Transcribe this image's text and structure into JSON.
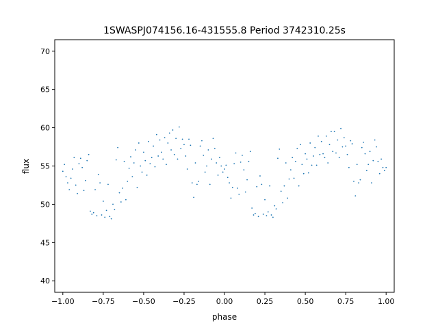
{
  "chart_data": {
    "type": "scatter",
    "title": "1SWASPJ074156.16-431555.8 Period 3742310.25s",
    "xlabel": "phase",
    "ylabel": "flux",
    "xlim": [
      -1.05,
      1.05
    ],
    "ylim": [
      38.5,
      71.5
    ],
    "xticks": [
      -1.0,
      -0.75,
      -0.5,
      -0.25,
      0.0,
      0.25,
      0.5,
      0.75,
      1.0
    ],
    "xtick_labels": [
      "−1.00",
      "−0.75",
      "−0.50",
      "−0.25",
      "0.00",
      "0.25",
      "0.50",
      "0.75",
      "1.00"
    ],
    "yticks": [
      40,
      45,
      50,
      55,
      60,
      65,
      70
    ],
    "ytick_labels": [
      "40",
      "45",
      "50",
      "55",
      "60",
      "65",
      "70"
    ],
    "grid": false,
    "legend": "none",
    "marker_color": "#1f77b4",
    "series": [
      {
        "x": [
          -1.0,
          -0.99,
          -0.98,
          -0.97,
          -0.96,
          -0.95,
          -0.94,
          -0.93,
          -0.92,
          -0.91,
          -0.9,
          -0.89,
          -0.88,
          -0.87,
          -0.86,
          -0.85,
          -0.84,
          -0.83,
          -0.82,
          -0.81,
          -0.8,
          -0.79,
          -0.78,
          -0.77,
          -0.76,
          -0.75,
          -0.74,
          -0.73,
          -0.72,
          -0.71,
          -0.7,
          -0.69,
          -0.68,
          -0.67,
          -0.66,
          -0.65,
          -0.64,
          -0.63,
          -0.62,
          -0.61,
          -0.6,
          -0.59,
          -0.58,
          -0.57,
          -0.56,
          -0.55,
          -0.54,
          -0.53,
          -0.52,
          -0.51,
          -0.5,
          -0.49,
          -0.48,
          -0.47,
          -0.46,
          -0.45,
          -0.44,
          -0.43,
          -0.42,
          -0.41,
          -0.4,
          -0.39,
          -0.38,
          -0.37,
          -0.36,
          -0.35,
          -0.34,
          -0.33,
          -0.32,
          -0.31,
          -0.3,
          -0.29,
          -0.28,
          -0.27,
          -0.26,
          -0.25,
          -0.24,
          -0.23,
          -0.22,
          -0.21,
          -0.2,
          -0.19,
          -0.18,
          -0.17,
          -0.16,
          -0.15,
          -0.14,
          -0.13,
          -0.12,
          -0.11,
          -0.1,
          -0.09,
          -0.08,
          -0.07,
          -0.06,
          -0.05,
          -0.04,
          -0.03,
          -0.02,
          -0.01,
          0.0,
          0.01,
          0.02,
          0.03,
          0.04,
          0.05,
          0.06,
          0.07,
          0.08,
          0.09,
          0.1,
          0.11,
          0.12,
          0.13,
          0.14,
          0.15,
          0.16,
          0.17,
          0.18,
          0.19,
          0.2,
          0.21,
          0.22,
          0.23,
          0.24,
          0.25,
          0.26,
          0.27,
          0.28,
          0.29,
          0.3,
          0.31,
          0.32,
          0.33,
          0.34,
          0.35,
          0.36,
          0.37,
          0.38,
          0.39,
          0.4,
          0.41,
          0.42,
          0.43,
          0.44,
          0.45,
          0.46,
          0.47,
          0.48,
          0.49,
          0.5,
          0.51,
          0.52,
          0.53,
          0.54,
          0.55,
          0.56,
          0.57,
          0.58,
          0.59,
          0.6,
          0.61,
          0.62,
          0.63,
          0.64,
          0.65,
          0.66,
          0.67,
          0.68,
          0.69,
          0.7,
          0.71,
          0.72,
          0.73,
          0.74,
          0.75,
          0.76,
          0.77,
          0.78,
          0.79,
          0.8,
          0.81,
          0.82,
          0.83,
          0.84,
          0.85,
          0.86,
          0.87,
          0.88,
          0.89,
          0.9,
          0.91,
          0.92,
          0.93,
          0.94,
          0.95,
          0.96,
          0.97,
          0.98,
          0.99,
          1.0
        ],
        "y": [
          54.3,
          55.2,
          53.6,
          52.8,
          51.9,
          53.4,
          54.6,
          56.1,
          52.5,
          51.4,
          55.3,
          56.0,
          54.8,
          51.8,
          53.1,
          55.7,
          56.5,
          49.1,
          48.7,
          48.9,
          51.9,
          48.5,
          53.9,
          52.8,
          48.6,
          50.4,
          48.3,
          49.2,
          52.6,
          48.4,
          48.1,
          50.0,
          49.3,
          55.8,
          57.4,
          51.5,
          50.3,
          52.1,
          55.6,
          50.6,
          53.0,
          54.7,
          56.2,
          53.6,
          55.4,
          57.1,
          52.2,
          58.0,
          55.0,
          54.2,
          56.8,
          55.7,
          53.8,
          58.2,
          55.3,
          56.1,
          57.6,
          54.9,
          59.1,
          56.3,
          58.4,
          56.8,
          55.9,
          58.7,
          55.2,
          58.0,
          59.3,
          57.1,
          59.7,
          56.5,
          58.6,
          55.9,
          60.1,
          57.3,
          58.5,
          57.8,
          56.3,
          54.6,
          58.5,
          57.7,
          52.8,
          50.9,
          55.4,
          52.6,
          53.0,
          57.6,
          58.3,
          56.4,
          54.2,
          55.0,
          57.1,
          52.6,
          55.9,
          58.6,
          57.3,
          55.4,
          53.8,
          56.1,
          55.0,
          54.2,
          54.6,
          55.1,
          53.5,
          52.8,
          50.8,
          52.2,
          55.3,
          56.7,
          52.1,
          51.3,
          55.5,
          56.4,
          54.5,
          51.6,
          53.2,
          55.6,
          56.9,
          49.5,
          48.6,
          48.8,
          52.3,
          48.4,
          53.7,
          52.6,
          48.7,
          50.6,
          48.5,
          49.0,
          52.4,
          48.6,
          48.3,
          49.8,
          49.4,
          56.0,
          57.2,
          51.7,
          50.2,
          52.4,
          55.4,
          50.8,
          53.3,
          54.5,
          56.1,
          53.4,
          55.6,
          57.3,
          52.4,
          57.8,
          55.2,
          54.0,
          56.6,
          55.9,
          54.1,
          58.0,
          55.1,
          56.3,
          57.4,
          55.1,
          58.9,
          56.5,
          58.2,
          56.6,
          56.1,
          58.9,
          55.4,
          57.8,
          59.5,
          56.9,
          59.5,
          56.7,
          58.4,
          56.1,
          59.9,
          57.5,
          58.7,
          57.6,
          56.5,
          54.8,
          58.3,
          57.9,
          53.0,
          51.1,
          55.2,
          52.8,
          53.2,
          57.4,
          58.1,
          56.6,
          54.4,
          55.2,
          56.9,
          52.8,
          55.7,
          58.4,
          57.5,
          55.6,
          54.0,
          55.9,
          54.8,
          54.4,
          54.8
        ]
      }
    ]
  }
}
